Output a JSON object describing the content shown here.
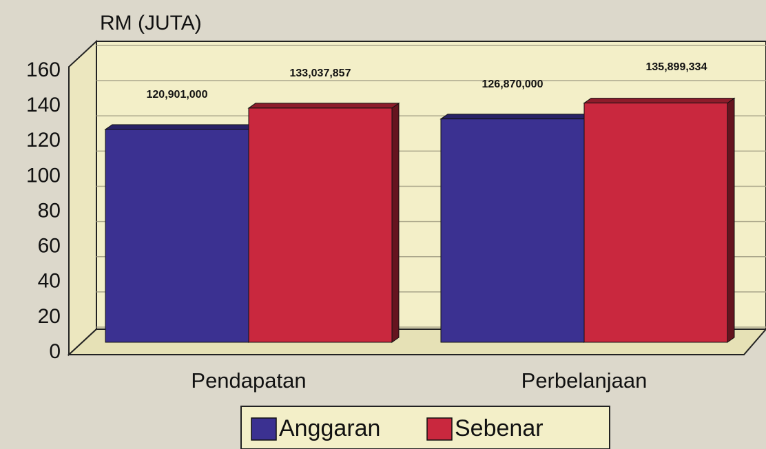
{
  "chart_data": {
    "type": "bar3d",
    "y_axis_title": "RM (JUTA)",
    "categories": [
      "Pendapatan",
      "Perbelanjaan"
    ],
    "series": [
      {
        "name": "Anggaran",
        "color": "#3b3191",
        "values": [
          120.901,
          126.87
        ],
        "value_labels": [
          "120,901,000",
          "126,870,000"
        ]
      },
      {
        "name": "Sebenar",
        "color": "#c9283e",
        "values": [
          133.037857,
          135.899334
        ],
        "value_labels": [
          "133,037,857",
          "135,899,334"
        ]
      }
    ],
    "ylim": [
      0,
      160
    ],
    "yticks": [
      0,
      20,
      40,
      60,
      80,
      100,
      120,
      140,
      160
    ],
    "grid": true,
    "legend": "bottom"
  }
}
